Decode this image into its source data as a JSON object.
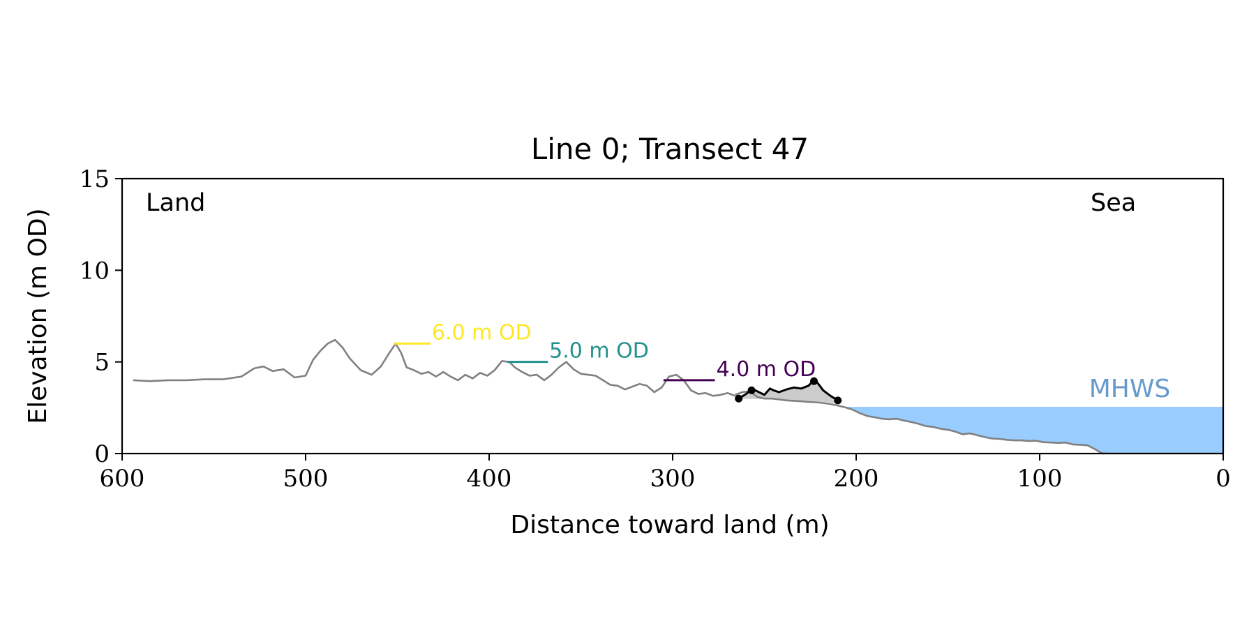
{
  "chart_data": {
    "type": "line",
    "title": "Line 0; Transect 47",
    "xlabel": "Distance toward land (m)",
    "ylabel": "Elevation (m OD)",
    "xlim": [
      600,
      0
    ],
    "ylim": [
      0,
      15
    ],
    "x_ticks": [
      600,
      500,
      400,
      300,
      200,
      100,
      0
    ],
    "y_ticks": [
      0,
      5,
      10,
      15
    ],
    "x_tick_labels": [
      "600",
      "500",
      "400",
      "300",
      "200",
      "100",
      "0"
    ],
    "y_tick_labels": [
      "0",
      "5",
      "10",
      "15"
    ],
    "grid": false,
    "annotations": {
      "land": "Land",
      "sea": "Sea",
      "mhws": "MHWS"
    },
    "mhws_level": 2.55,
    "series": [
      {
        "role": "elevation-profile",
        "x": [
          594,
          585,
          575,
          565,
          555,
          545,
          535,
          528,
          523,
          518,
          512,
          506,
          500,
          496,
          492,
          488,
          484,
          480,
          476,
          470,
          464,
          459,
          455,
          451,
          448,
          445,
          441,
          437,
          433,
          429,
          425,
          421,
          417,
          413,
          409,
          405,
          401,
          397,
          393,
          389,
          386,
          382,
          378,
          374,
          370,
          366,
          362,
          358,
          354,
          350,
          346,
          342,
          338,
          334,
          330,
          326,
          322,
          318,
          314,
          310,
          306,
          302,
          298,
          294,
          290,
          286,
          282,
          278,
          274,
          270,
          266
        ],
        "y": [
          4.0,
          3.95,
          4.0,
          4.0,
          4.05,
          4.05,
          4.2,
          4.65,
          4.75,
          4.5,
          4.6,
          4.15,
          4.25,
          5.1,
          5.6,
          6.0,
          6.2,
          5.8,
          5.2,
          4.55,
          4.3,
          4.75,
          5.4,
          6.0,
          5.5,
          4.7,
          4.55,
          4.35,
          4.45,
          4.2,
          4.45,
          4.2,
          4.0,
          4.3,
          4.1,
          4.4,
          4.25,
          4.55,
          5.05,
          5.0,
          4.7,
          4.45,
          4.25,
          4.3,
          4.0,
          4.3,
          4.7,
          5.0,
          4.6,
          4.35,
          4.3,
          4.25,
          4.0,
          3.75,
          3.7,
          3.5,
          3.65,
          3.8,
          3.7,
          3.35,
          3.6,
          4.2,
          4.3,
          4.0,
          3.45,
          3.25,
          3.3,
          3.15,
          3.2,
          3.3,
          3.15
        ],
        "color": "#808080"
      },
      {
        "role": "elevation-profile-seaward",
        "x": [
          266,
          262,
          258,
          254,
          250,
          246,
          242,
          238,
          234,
          230,
          226,
          222,
          218,
          214,
          210,
          206,
          202,
          198,
          194,
          190,
          186,
          182,
          178,
          174,
          170,
          166,
          162,
          158,
          154,
          150,
          146,
          142,
          138,
          134,
          130,
          126,
          122,
          118,
          114,
          110,
          106,
          102,
          98,
          94,
          90,
          86,
          82,
          78,
          74,
          70,
          68,
          66,
          62,
          58,
          54,
          50,
          0
        ],
        "y": [
          3.2,
          3.35,
          3.4,
          3.1,
          3.0,
          3.0,
          2.95,
          2.9,
          2.88,
          2.85,
          2.82,
          2.8,
          2.76,
          2.7,
          2.62,
          2.52,
          2.4,
          2.2,
          2.05,
          1.98,
          1.9,
          1.87,
          1.9,
          1.8,
          1.72,
          1.62,
          1.5,
          1.45,
          1.35,
          1.3,
          1.2,
          1.05,
          1.1,
          1.0,
          0.9,
          0.82,
          0.8,
          0.75,
          0.72,
          0.72,
          0.68,
          0.7,
          0.62,
          0.6,
          0.58,
          0.6,
          0.5,
          0.48,
          0.45,
          0.25,
          0.12,
          0.02,
          0.0,
          0.0,
          0.0,
          0.0,
          0.0
        ],
        "color": "#808080"
      },
      {
        "role": "dune-crest",
        "x": [
          264,
          260,
          257,
          255,
          250,
          247,
          245,
          242,
          238,
          234,
          230,
          226,
          223,
          221,
          218,
          214,
          210
        ],
        "y": [
          3.0,
          3.25,
          3.5,
          3.45,
          3.2,
          3.55,
          3.45,
          3.35,
          3.5,
          3.6,
          3.55,
          3.7,
          4.0,
          3.85,
          3.45,
          3.15,
          2.9
        ],
        "color": "#000000",
        "marker_x": [
          264,
          257,
          223,
          210
        ],
        "marker_y": [
          3.0,
          3.45,
          3.95,
          2.9
        ]
      }
    ],
    "shaded_region": {
      "x": [
        264,
        260,
        257,
        255,
        250,
        247,
        245,
        242,
        238,
        234,
        230,
        226,
        223,
        221,
        218,
        214,
        210
      ],
      "upper": [
        3.0,
        3.25,
        3.5,
        3.45,
        3.2,
        3.55,
        3.45,
        3.35,
        3.5,
        3.6,
        3.55,
        3.7,
        4.0,
        3.85,
        3.45,
        3.15,
        2.9
      ],
      "lower": [
        3.0,
        2.98,
        2.98,
        2.98,
        2.97,
        2.96,
        2.96,
        2.95,
        2.93,
        2.91,
        2.9,
        2.88,
        2.86,
        2.84,
        2.82,
        2.78,
        2.72
      ],
      "color": "#cccccc"
    },
    "contour_markers": [
      {
        "label": "6.0 m OD",
        "level": 6.0,
        "x_start": 452,
        "x_end": 432,
        "color": "#fde725"
      },
      {
        "label": "5.0 m OD",
        "level": 5.0,
        "x_start": 390,
        "x_end": 368,
        "color": "#21918c"
      },
      {
        "label": "4.0 m OD",
        "level": 4.0,
        "x_start": 305,
        "x_end": 277,
        "color": "#440154"
      }
    ],
    "mhws_fill_color": "#99ccff",
    "mhws_label_color": "#6699cc"
  }
}
